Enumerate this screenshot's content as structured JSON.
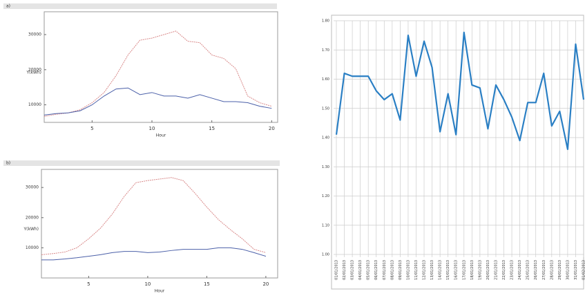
{
  "chart_data": [
    {
      "type": "line",
      "header": "a)",
      "x_label": "Hour",
      "y_label": "Y(kWh)",
      "x": [
        1,
        2,
        3,
        4,
        5,
        6,
        7,
        8,
        9,
        10,
        11,
        12,
        13,
        14,
        15,
        16,
        17,
        18,
        19,
        20
      ],
      "series": [
        {
          "color": "#d98a8a",
          "dash": true,
          "values": [
            6700,
            7300,
            7700,
            8600,
            10600,
            13500,
            18300,
            24200,
            28400,
            29000,
            30000,
            31000,
            28100,
            27700,
            24200,
            23200,
            20300,
            12500,
            10600,
            9600
          ]
        },
        {
          "color": "#4a5fa8",
          "dash": false,
          "values": [
            7100,
            7500,
            7700,
            8300,
            10000,
            12500,
            14500,
            14800,
            12900,
            13500,
            12500,
            12500,
            11900,
            12900,
            11900,
            10900,
            10900,
            10600,
            9600,
            9000
          ]
        }
      ],
      "xlim": [
        1,
        20.5
      ],
      "xticks": [
        5,
        10,
        15,
        20
      ],
      "ylim": [
        5000,
        36500
      ],
      "yticks": [
        10000,
        20000,
        30000
      ]
    },
    {
      "type": "line",
      "header": "b)",
      "x_label": "Hour",
      "y_label": "Y(kWh)",
      "x": [
        1,
        2,
        3,
        4,
        5,
        6,
        7,
        8,
        9,
        10,
        11,
        12,
        13,
        14,
        15,
        16,
        17,
        18,
        19,
        20
      ],
      "series": [
        {
          "color": "#d98a8a",
          "dash": true,
          "values": [
            7700,
            8100,
            8600,
            10000,
            13000,
            16500,
            21200,
            27000,
            31600,
            32300,
            32800,
            33300,
            32300,
            28100,
            23500,
            19300,
            16000,
            13000,
            9500,
            8400
          ]
        },
        {
          "color": "#4a5fa8",
          "dash": false,
          "values": [
            6000,
            6000,
            6300,
            6700,
            7200,
            7700,
            8400,
            8800,
            8800,
            8400,
            8600,
            9100,
            9500,
            9500,
            9500,
            10000,
            10000,
            9500,
            8400,
            7200
          ]
        }
      ],
      "xlim": [
        1,
        21
      ],
      "xticks": [
        5,
        10,
        15,
        20
      ],
      "ylim": [
        0,
        36000
      ],
      "yticks": [
        10000,
        20000,
        30000
      ]
    },
    {
      "type": "category-line",
      "color": "#2a7fc4",
      "categories": [
        "01/01/2013",
        "02/01/2013",
        "03/01/2013",
        "04/01/2013",
        "05/01/2013",
        "06/01/2013",
        "07/01/2013",
        "08/01/2013",
        "09/01/2013",
        "10/01/2013",
        "11/01/2013",
        "12/01/2013",
        "13/01/2013",
        "14/01/2013",
        "15/01/2013",
        "16/01/2013",
        "17/01/2013",
        "18/01/2013",
        "19/01/2013",
        "20/01/2013",
        "21/01/2013",
        "22/01/2013",
        "23/01/2013",
        "24/01/2013",
        "25/01/2013",
        "26/01/2013",
        "27/01/2013",
        "28/01/2013",
        "29/01/2013",
        "30/01/2013",
        "31/01/2013",
        "01/02/2013"
      ],
      "values": [
        1.41,
        1.62,
        1.61,
        1.61,
        1.61,
        1.56,
        1.53,
        1.55,
        1.46,
        1.75,
        1.61,
        1.73,
        1.64,
        1.42,
        1.55,
        1.41,
        1.76,
        1.58,
        1.57,
        1.43,
        1.58,
        1.53,
        1.47,
        1.39,
        1.52,
        1.52,
        1.62,
        1.44,
        1.49,
        1.36,
        1.72,
        1.53
      ],
      "ylim": [
        1.0,
        1.8
      ],
      "yticks": [
        {
          "value": 1.0,
          "label": "1.00"
        },
        {
          "value": 1.1,
          "label": "1.10"
        },
        {
          "value": 1.2,
          "label": "1.20"
        },
        {
          "value": 1.3,
          "label": "1.30"
        },
        {
          "value": 1.4,
          "label": "1.40"
        },
        {
          "value": 1.5,
          "label": "1.50"
        },
        {
          "value": 1.6,
          "label": "1.60"
        },
        {
          "value": 1.7,
          "label": "1.70"
        },
        {
          "value": 1.8,
          "label": "1.80"
        }
      ],
      "grid": true
    }
  ]
}
